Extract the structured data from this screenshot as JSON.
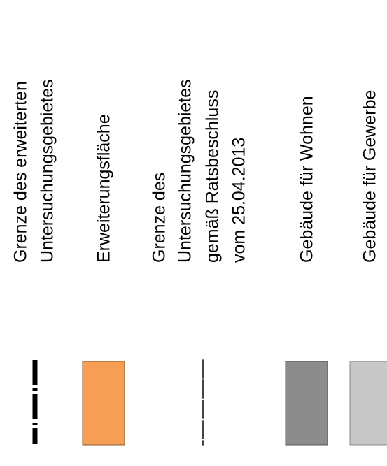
{
  "legend": {
    "items": [
      {
        "lines": [
          "Grenze des erweiterten",
          "Untersuchungsgebietes"
        ]
      },
      {
        "lines": [
          "Erweiterungsfläche"
        ]
      },
      {
        "lines": [
          "Grenze des",
          "Untersuchungsgebietes",
          "gemäß Ratsbeschluss",
          "vom 25.04.2013"
        ]
      },
      {
        "lines": [
          "Gebäude für Wohnen"
        ]
      },
      {
        "lines": [
          "Gebäude für Gewerbe"
        ]
      }
    ]
  }
}
